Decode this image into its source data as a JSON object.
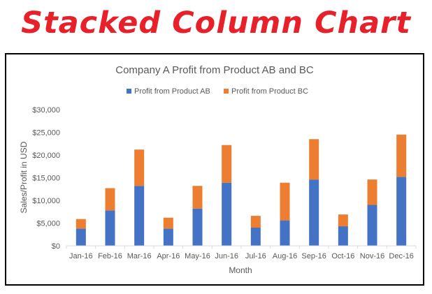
{
  "banner": {
    "title": "Stacked Column Chart"
  },
  "chart_data": {
    "type": "bar",
    "stacked": true,
    "title": "Company A Profit from Product AB and BC",
    "xlabel": "Month",
    "ylabel": "Sales/Profit in USD",
    "ylim": [
      0,
      30000
    ],
    "yticks": [
      0,
      5000,
      10000,
      15000,
      20000,
      25000,
      30000
    ],
    "ytick_labels": [
      "$0",
      "$5,000",
      "$10,000",
      "$15,000",
      "$20,000",
      "$25,000",
      "$30,000"
    ],
    "grid": false,
    "legend_position": "top",
    "categories": [
      "Jan-16",
      "Feb-16",
      "Mar-16",
      "Apr-16",
      "May-16",
      "Jun-16",
      "Jul-16",
      "Aug-16",
      "Sep-16",
      "Oct-16",
      "Nov-16",
      "Dec-16"
    ],
    "series": [
      {
        "name": "Profit from Product AB",
        "color": "#4472c4",
        "values": [
          3800,
          7800,
          13200,
          3800,
          8200,
          13900,
          4000,
          5600,
          14600,
          4300,
          9000,
          15200
        ]
      },
      {
        "name": "Profit from Product BC",
        "color": "#ed7d31",
        "values": [
          2100,
          4900,
          8000,
          2400,
          5000,
          8300,
          2600,
          8300,
          8900,
          2600,
          5600,
          9300
        ]
      }
    ]
  }
}
